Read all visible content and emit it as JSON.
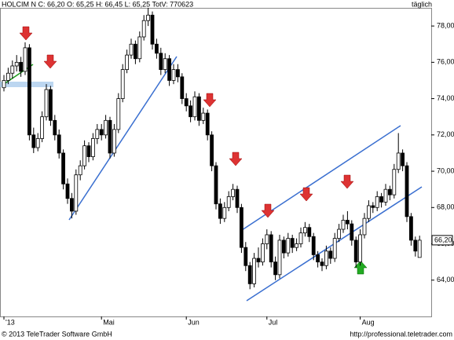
{
  "chart_data": {
    "type": "candlestick",
    "title": "HOLCIM N C: 66,20 O: 65,25 H: 66,45 L: 65,25 TotV: 770623",
    "period": "täglich",
    "copyright": "© 2013 TeleTrader Software GmbH",
    "url": "http://professional.teletrader.com",
    "categories": [
      "'13",
      null,
      null,
      null,
      null,
      null,
      null,
      null,
      null,
      null,
      null,
      null,
      null,
      null,
      null,
      null,
      null,
      null,
      null,
      null,
      null,
      null,
      null,
      "Mai",
      null,
      null,
      null,
      null,
      null,
      null,
      null,
      null,
      null,
      null,
      null,
      null,
      null,
      null,
      null,
      null,
      null,
      null,
      null,
      "Jun",
      null,
      null,
      null,
      null,
      null,
      null,
      null,
      null,
      null,
      null,
      null,
      null,
      null,
      null,
      null,
      null,
      null,
      null,
      "Jul",
      null,
      null,
      null,
      null,
      null,
      null,
      null,
      null,
      null,
      null,
      null,
      null,
      null,
      null,
      null,
      null,
      null,
      null,
      null,
      null,
      null,
      "Aug",
      null,
      null,
      null,
      null,
      null,
      null,
      null,
      null,
      null,
      null,
      null,
      null,
      null,
      null
    ],
    "open": [
      74.6,
      75.0,
      75.4,
      75.8,
      76.0,
      75.5,
      76.8,
      72.0,
      71.3,
      71.8,
      73.0,
      74.5,
      72.8,
      72.0,
      71.0,
      69.3,
      68.5,
      67.8,
      69.8,
      70.3,
      71.4,
      70.8,
      71.8,
      72.3,
      72.0,
      72.8,
      71.0,
      72.3,
      74.0,
      75.6,
      76.4,
      77.0,
      76.2,
      77.4,
      78.3,
      78.6,
      77.0,
      76.5,
      75.6,
      76.2,
      75.0,
      75.6,
      75.2,
      74.0,
      73.6,
      73.0,
      74.1,
      72.8,
      73.2,
      72.0,
      70.3,
      68.2,
      67.4,
      68.0,
      68.6,
      69.0,
      68.0,
      65.8,
      64.8,
      63.8,
      65.2,
      65.0,
      66.0,
      66.5,
      65.0,
      64.3,
      66.2,
      65.5,
      66.3,
      65.8,
      66.0,
      66.6,
      66.9,
      66.4,
      65.4,
      65.0,
      64.8,
      65.6,
      65.2,
      66.3,
      66.8,
      67.3,
      67.1,
      66.2,
      65.0,
      66.5,
      67.4,
      68.1,
      68.0,
      68.6,
      68.3,
      69.0,
      68.7,
      70.1,
      71.0,
      70.3,
      67.5,
      66.2,
      65.25
    ],
    "high": [
      75.3,
      75.7,
      76.1,
      76.4,
      76.3,
      77.1,
      77.0,
      72.4,
      72.1,
      73.3,
      74.8,
      74.7,
      73.1,
      72.3,
      71.2,
      69.6,
      68.8,
      70.1,
      70.6,
      71.7,
      71.6,
      72.1,
      72.6,
      72.6,
      73.1,
      73.0,
      72.6,
      74.3,
      75.9,
      76.7,
      77.3,
      77.2,
      77.7,
      78.6,
      79.0,
      78.8,
      77.3,
      76.8,
      76.5,
      76.4,
      75.9,
      75.9,
      75.4,
      74.3,
      73.9,
      74.4,
      74.3,
      73.5,
      73.4,
      72.2,
      70.5,
      68.5,
      68.3,
      68.9,
      69.3,
      69.2,
      68.2,
      66.1,
      65.0,
      65.5,
      65.8,
      66.3,
      66.8,
      66.7,
      65.3,
      66.5,
      66.4,
      66.6,
      66.5,
      66.3,
      66.9,
      67.2,
      67.1,
      66.6,
      65.6,
      65.2,
      65.9,
      65.8,
      66.6,
      67.1,
      67.6,
      67.8,
      67.3,
      66.4,
      66.8,
      67.7,
      68.4,
      68.3,
      68.9,
      68.8,
      69.3,
      69.2,
      70.4,
      72.1,
      71.2,
      70.5,
      67.7,
      66.4,
      66.45
    ],
    "low": [
      74.4,
      74.8,
      75.1,
      75.5,
      75.2,
      75.3,
      71.7,
      71.0,
      71.1,
      71.6,
      72.8,
      72.5,
      71.7,
      70.7,
      69.0,
      68.2,
      67.4,
      67.6,
      69.5,
      70.1,
      70.5,
      70.6,
      71.5,
      71.7,
      71.8,
      70.7,
      70.8,
      72.1,
      73.8,
      75.4,
      76.2,
      75.9,
      76.0,
      77.2,
      78.0,
      76.7,
      76.2,
      75.3,
      75.4,
      74.7,
      74.8,
      74.9,
      73.7,
      73.3,
      72.7,
      72.8,
      72.5,
      72.6,
      71.7,
      70.0,
      67.9,
      67.1,
      67.2,
      67.8,
      68.4,
      67.7,
      65.5,
      64.5,
      63.5,
      63.6,
      64.7,
      64.8,
      65.7,
      64.7,
      64.0,
      64.1,
      65.2,
      65.3,
      65.5,
      65.6,
      65.8,
      66.4,
      66.1,
      65.1,
      64.7,
      64.5,
      64.6,
      64.9,
      65.0,
      66.1,
      66.6,
      66.8,
      65.9,
      64.7,
      64.8,
      66.3,
      67.2,
      67.7,
      67.8,
      68.0,
      68.1,
      68.4,
      68.5,
      69.9,
      70.0,
      67.2,
      65.9,
      65.3,
      65.25
    ],
    "close": [
      75.0,
      75.4,
      75.8,
      76.0,
      75.5,
      76.8,
      72.0,
      71.3,
      71.8,
      73.0,
      74.5,
      72.8,
      72.0,
      71.0,
      69.3,
      68.5,
      67.8,
      69.8,
      70.3,
      71.4,
      70.8,
      71.8,
      72.3,
      72.0,
      72.8,
      71.0,
      72.3,
      74.0,
      75.6,
      76.4,
      77.0,
      76.2,
      77.4,
      78.3,
      78.6,
      77.0,
      76.5,
      75.6,
      76.2,
      75.0,
      75.6,
      75.2,
      74.0,
      73.6,
      73.0,
      74.1,
      72.8,
      73.2,
      72.0,
      70.3,
      68.2,
      67.4,
      68.0,
      68.6,
      69.0,
      68.0,
      65.8,
      64.8,
      63.8,
      65.2,
      65.0,
      66.0,
      66.5,
      65.0,
      64.3,
      66.2,
      65.5,
      66.3,
      65.8,
      66.0,
      66.6,
      66.9,
      66.4,
      65.4,
      65.0,
      64.8,
      65.6,
      65.2,
      66.3,
      66.8,
      67.3,
      67.1,
      66.2,
      65.0,
      66.5,
      67.4,
      68.1,
      68.0,
      68.6,
      68.3,
      69.0,
      68.7,
      70.1,
      71.0,
      70.3,
      67.5,
      66.2,
      65.6,
      66.2
    ],
    "up_color": "#ffffff",
    "down_color": "#000000",
    "last_price": {
      "value": 66.2,
      "label": "66,20"
    },
    "ylim": [
      62.0,
      79.0
    ],
    "yticks": [
      {
        "value": 64,
        "label": "64,00"
      },
      {
        "value": 66,
        "label": "66,00"
      },
      {
        "value": 68,
        "label": "68,00"
      },
      {
        "value": 70,
        "label": "70,00"
      },
      {
        "value": 72,
        "label": "72,00"
      },
      {
        "value": 74,
        "label": "74,00"
      },
      {
        "value": 76,
        "label": "76,00"
      },
      {
        "value": 78,
        "label": "78,00"
      }
    ],
    "grid": false
  }
}
